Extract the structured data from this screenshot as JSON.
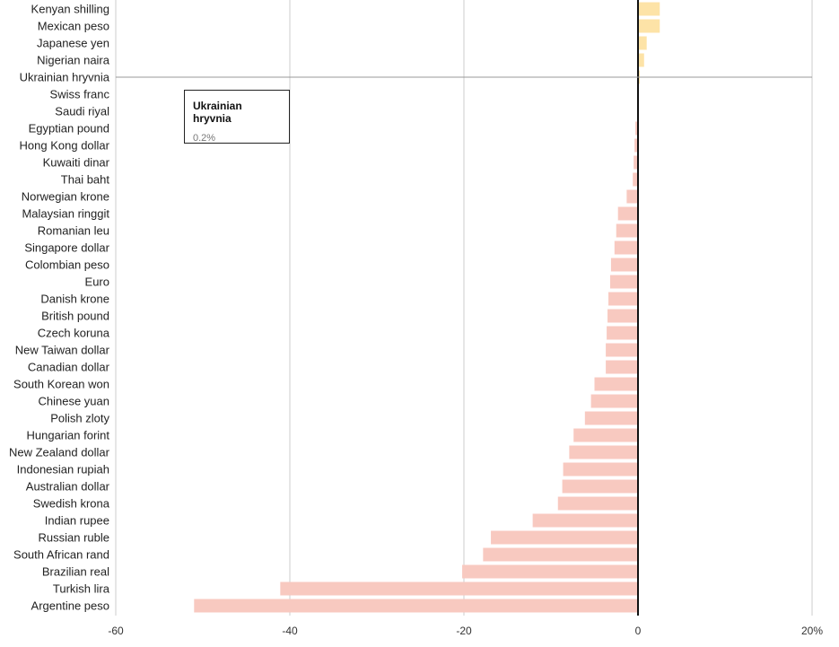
{
  "chart_data": {
    "type": "bar",
    "orientation": "horizontal",
    "title": "",
    "xlabel": "",
    "ylabel": "",
    "xlim": [
      -60,
      20
    ],
    "x_ticks": [
      {
        "value": -60,
        "label": "-60"
      },
      {
        "value": -40,
        "label": "-40"
      },
      {
        "value": -20,
        "label": "-20"
      },
      {
        "value": 0,
        "label": "0"
      },
      {
        "value": 20,
        "label": "20%"
      }
    ],
    "grid": true,
    "positive_color": "#fde3a7",
    "negative_color": "#f8c9c0",
    "highlight_color": "#999999",
    "highlighted_category": "Ukrainian hryvnia",
    "categories": [
      "Kenyan shilling",
      "Mexican peso",
      "Japanese yen",
      "Nigerian naira",
      "Ukrainian hryvnia",
      "Swiss franc",
      "Saudi riyal",
      "Egyptian pound",
      "Hong Kong dollar",
      "Kuwaiti dinar",
      "Thai baht",
      "Norwegian krone",
      "Malaysian ringgit",
      "Romanian leu",
      "Singapore dollar",
      "Colombian peso",
      "Euro",
      "Danish krone",
      "British pound",
      "Czech koruna",
      "New Taiwan dollar",
      "Canadian dollar",
      "South Korean won",
      "Chinese yuan",
      "Polish zloty",
      "Hungarian forint",
      "New Zealand dollar",
      "Indonesian rupiah",
      "Australian dollar",
      "Swedish krona",
      "Indian rupee",
      "Russian ruble",
      "South African rand",
      "Brazilian real",
      "Turkish lira",
      "Argentine peso"
    ],
    "values": [
      2.5,
      2.5,
      1.0,
      0.7,
      0.2,
      0.05,
      0.0,
      -0.3,
      -0.4,
      -0.5,
      -0.6,
      -1.3,
      -2.3,
      -2.5,
      -2.7,
      -3.1,
      -3.2,
      -3.4,
      -3.5,
      -3.6,
      -3.7,
      -3.7,
      -5.0,
      -5.4,
      -6.1,
      -7.4,
      -7.9,
      -8.6,
      -8.7,
      -9.2,
      -12.1,
      -16.9,
      -17.8,
      -20.2,
      -41.1,
      -51.0
    ]
  },
  "tooltip": {
    "title": "Ukrainian hryvnia",
    "value": "0.2%"
  }
}
